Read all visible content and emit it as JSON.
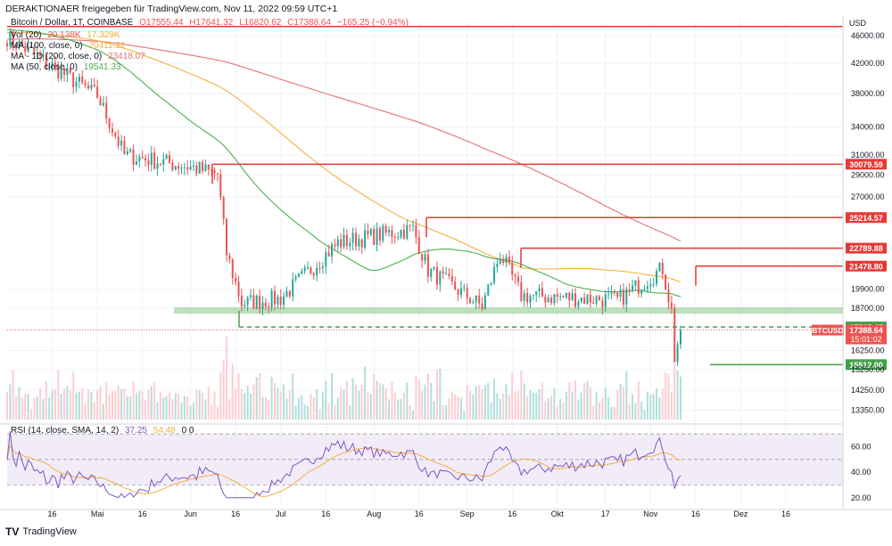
{
  "header": {
    "publisher": "DERAKTIONAER freigegeben für TradingView.com, Nov 11, 2022 09:59 UTC+1",
    "symbol": "Bitcoin / Dollar, 1T, COINBASE",
    "open": "O17555.44",
    "high": "H17641.32",
    "low": "L16820.62",
    "close": "C17388.64",
    "change": "−165.25 (−0.94%)"
  },
  "legend": {
    "vol_label": "Vol (20)",
    "vol_value": "20.138K",
    "vol_ma": "17.329K",
    "ma100_label": "MA (100, close, 0)",
    "ma100_value": "20411.32",
    "ma200_label": "MA - 1D (200, close, 0)",
    "ma200_value": "23418.07",
    "ma50_label": "MA (50, close, 0)",
    "ma50_value": "19541.33",
    "rsi_label": "RSI (14, close, SMA, 14, 2)",
    "rsi_value": "37.25",
    "rsi_ma": "54.48",
    "rsi_extra": "0  0"
  },
  "footer": {
    "logo": "TV",
    "brand": "TradingView"
  },
  "colors": {
    "up": "#26a69a",
    "down": "#ef5350",
    "ma50": "#4caf50",
    "ma100": "#f5b041",
    "ma200": "#e57373",
    "resistance": "#e53935",
    "support": "#43a047",
    "rsi": "#7e57c2"
  },
  "chart_data": {
    "type": "candlestick",
    "title": "Bitcoin / Dollar, 1T, COINBASE",
    "currency_label": "USD",
    "y_scale": "log",
    "ylim": [
      12900,
      48500
    ],
    "y_ticks": [
      "46000.00",
      "42000.00",
      "38000.00",
      "34000.00",
      "31000.00",
      "29000.00",
      "27000.00",
      "19900.00",
      "18700.00",
      "16250.00",
      "15250.00",
      "14250.00",
      "13350.00"
    ],
    "x_ticks": [
      "16",
      "Mai",
      "16",
      "Jun",
      "16",
      "Jul",
      "16",
      "Aug",
      "16",
      "Sep",
      "16",
      "Okt",
      "17",
      "Nov",
      "16",
      "Dez",
      "16"
    ],
    "horizontal_levels": [
      {
        "label": "30079.59",
        "value": 30079.59,
        "kind": "resistance"
      },
      {
        "label": "25214.57",
        "value": 25214.57,
        "kind": "resistance"
      },
      {
        "label": "22789.88",
        "value": 22789.88,
        "kind": "resistance"
      },
      {
        "label": "21478.80",
        "value": 21478.8,
        "kind": "resistance"
      },
      {
        "label": "17567.45",
        "value": 17567.45,
        "kind": "support-dashed"
      },
      {
        "label": "15512.00",
        "value": 15512.0,
        "kind": "support"
      }
    ],
    "top_line": 47400,
    "support_zone": [
      18350,
      18750
    ],
    "price_tag": {
      "symbol": "BTCUSD",
      "price": "17388.64",
      "countdown": "15:01:02"
    },
    "key_prices": [
      {
        "date": "2022-04-01",
        "close": 45800
      },
      {
        "date": "2022-05-01",
        "close": 37700
      },
      {
        "date": "2022-05-10",
        "close": 31000
      },
      {
        "date": "2022-06-01",
        "close": 29800
      },
      {
        "date": "2022-06-10",
        "close": 29100
      },
      {
        "date": "2022-06-13",
        "close": 22400
      },
      {
        "date": "2022-06-18",
        "close": 19000
      },
      {
        "date": "2022-07-01",
        "close": 19300
      },
      {
        "date": "2022-07-20",
        "close": 23200
      },
      {
        "date": "2022-08-14",
        "close": 24300
      },
      {
        "date": "2022-08-19",
        "close": 21200
      },
      {
        "date": "2022-09-06",
        "close": 18800
      },
      {
        "date": "2022-09-12",
        "close": 22400
      },
      {
        "date": "2022-09-19",
        "close": 19500
      },
      {
        "date": "2022-10-21",
        "close": 19200
      },
      {
        "date": "2022-11-05",
        "close": 21300
      },
      {
        "date": "2022-11-08",
        "close": 18500
      },
      {
        "date": "2022-11-09",
        "close": 15900
      },
      {
        "date": "2022-11-11",
        "close": 17388.64
      }
    ],
    "rsi": {
      "ylim": [
        15,
        75
      ],
      "y_ticks": [
        "60.00",
        "40.00",
        "20.00"
      ],
      "overbought": 70,
      "oversold": 30,
      "mid": 50,
      "last": 37.25,
      "ma": 54.48
    },
    "volume": {
      "last": "20.138K",
      "ma": "17.329K"
    }
  }
}
